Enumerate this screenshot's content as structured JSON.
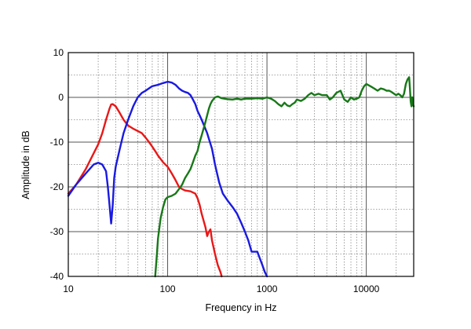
{
  "chart_data": {
    "type": "line",
    "xlabel": "Frequency in Hz",
    "ylabel": "Amplitude in dB",
    "x_scale": "log",
    "xlim": [
      10,
      30000
    ],
    "ylim": [
      -40,
      10
    ],
    "x_ticks": [
      {
        "value": 10,
        "label": "10"
      },
      {
        "value": 100,
        "label": "100"
      },
      {
        "value": 1000,
        "label": "1000"
      },
      {
        "value": 10000,
        "label": "10000"
      }
    ],
    "y_ticks": [
      {
        "value": 10,
        "label": "10"
      },
      {
        "value": 0,
        "label": "0"
      },
      {
        "value": -10,
        "label": "-10"
      },
      {
        "value": -20,
        "label": "-20"
      },
      {
        "value": -30,
        "label": "-30"
      },
      {
        "value": -40,
        "label": "-40"
      }
    ],
    "grid": true,
    "series": [
      {
        "color": "#e81818",
        "points": [
          [
            10,
            -21.5
          ],
          [
            12,
            -19.5
          ],
          [
            15,
            -16
          ],
          [
            18,
            -12.5
          ],
          [
            20,
            -10.5
          ],
          [
            22,
            -8
          ],
          [
            24,
            -5
          ],
          [
            26,
            -2.5
          ],
          [
            27,
            -1.6
          ],
          [
            28,
            -1.5
          ],
          [
            30,
            -2
          ],
          [
            33,
            -3.5
          ],
          [
            36,
            -5
          ],
          [
            40,
            -6.3
          ],
          [
            45,
            -7
          ],
          [
            50,
            -7.5
          ],
          [
            55,
            -8
          ],
          [
            60,
            -9
          ],
          [
            65,
            -10
          ],
          [
            70,
            -11
          ],
          [
            75,
            -12
          ],
          [
            80,
            -13
          ],
          [
            90,
            -14.5
          ],
          [
            100,
            -15.5
          ],
          [
            110,
            -17
          ],
          [
            120,
            -18.5
          ],
          [
            130,
            -20
          ],
          [
            140,
            -20.5
          ],
          [
            150,
            -20.8
          ],
          [
            170,
            -21
          ],
          [
            190,
            -21.5
          ],
          [
            200,
            -22.5
          ],
          [
            210,
            -24
          ],
          [
            220,
            -26
          ],
          [
            230,
            -27.5
          ],
          [
            240,
            -29
          ],
          [
            250,
            -31
          ],
          [
            260,
            -30
          ],
          [
            270,
            -29.5
          ],
          [
            280,
            -32
          ],
          [
            300,
            -35
          ],
          [
            320,
            -37.5
          ],
          [
            340,
            -39
          ],
          [
            350,
            -40
          ]
        ]
      },
      {
        "color": "#1a1ae0",
        "points": [
          [
            10,
            -22
          ],
          [
            12,
            -19.5
          ],
          [
            15,
            -17
          ],
          [
            18,
            -15
          ],
          [
            20,
            -14.6
          ],
          [
            22,
            -15
          ],
          [
            24,
            -16.5
          ],
          [
            25,
            -20
          ],
          [
            26,
            -24
          ],
          [
            27,
            -28.2
          ],
          [
            28,
            -24
          ],
          [
            29,
            -18
          ],
          [
            30,
            -15.5
          ],
          [
            33,
            -11.5
          ],
          [
            36,
            -8
          ],
          [
            40,
            -5
          ],
          [
            45,
            -2
          ],
          [
            50,
            0
          ],
          [
            55,
            1
          ],
          [
            60,
            1.5
          ],
          [
            70,
            2.5
          ],
          [
            80,
            2.8
          ],
          [
            90,
            3.2
          ],
          [
            100,
            3.5
          ],
          [
            110,
            3.3
          ],
          [
            120,
            2.8
          ],
          [
            130,
            2
          ],
          [
            140,
            1.5
          ],
          [
            150,
            1.2
          ],
          [
            160,
            1
          ],
          [
            170,
            0.5
          ],
          [
            180,
            -0.5
          ],
          [
            190,
            -1.5
          ],
          [
            200,
            -3
          ],
          [
            210,
            -4
          ],
          [
            220,
            -5
          ],
          [
            250,
            -8
          ],
          [
            280,
            -11.5
          ],
          [
            300,
            -15
          ],
          [
            330,
            -19
          ],
          [
            360,
            -21.5
          ],
          [
            400,
            -23
          ],
          [
            450,
            -24.5
          ],
          [
            500,
            -26
          ],
          [
            550,
            -28
          ],
          [
            600,
            -30
          ],
          [
            650,
            -32
          ],
          [
            700,
            -34.5
          ],
          [
            800,
            -34.5
          ],
          [
            900,
            -37.5
          ],
          [
            950,
            -39
          ],
          [
            1000,
            -40
          ]
        ]
      },
      {
        "color": "#187818",
        "points": [
          [
            75,
            -40
          ],
          [
            78,
            -35
          ],
          [
            80,
            -31.5
          ],
          [
            85,
            -27
          ],
          [
            90,
            -24.5
          ],
          [
            95,
            -22.8
          ],
          [
            100,
            -22.3
          ],
          [
            110,
            -22
          ],
          [
            120,
            -21.5
          ],
          [
            130,
            -20.5
          ],
          [
            140,
            -19.5
          ],
          [
            150,
            -18
          ],
          [
            160,
            -17
          ],
          [
            170,
            -16
          ],
          [
            180,
            -14.5
          ],
          [
            190,
            -13
          ],
          [
            200,
            -12
          ],
          [
            210,
            -10
          ],
          [
            220,
            -8.5
          ],
          [
            230,
            -7
          ],
          [
            240,
            -5.5
          ],
          [
            250,
            -4
          ],
          [
            260,
            -2.5
          ],
          [
            270,
            -1.5
          ],
          [
            280,
            -0.8
          ],
          [
            300,
            0
          ],
          [
            320,
            0.2
          ],
          [
            350,
            -0.2
          ],
          [
            400,
            -0.4
          ],
          [
            450,
            -0.5
          ],
          [
            500,
            -0.3
          ],
          [
            550,
            -0.5
          ],
          [
            600,
            -0.3
          ],
          [
            700,
            -0.3
          ],
          [
            800,
            -0.2
          ],
          [
            900,
            -0.3
          ],
          [
            1000,
            0
          ],
          [
            1100,
            -0.3
          ],
          [
            1200,
            -0.8
          ],
          [
            1300,
            -1.5
          ],
          [
            1400,
            -2
          ],
          [
            1500,
            -1.2
          ],
          [
            1600,
            -1.8
          ],
          [
            1700,
            -2
          ],
          [
            1800,
            -1.5
          ],
          [
            1900,
            -1.2
          ],
          [
            2000,
            -0.5
          ],
          [
            2200,
            -0.8
          ],
          [
            2400,
            -0.3
          ],
          [
            2600,
            0.5
          ],
          [
            2800,
            1
          ],
          [
            3000,
            0.5
          ],
          [
            3300,
            0.8
          ],
          [
            3600,
            0.5
          ],
          [
            4000,
            0.5
          ],
          [
            4300,
            -0.5
          ],
          [
            4600,
            0
          ],
          [
            5000,
            1
          ],
          [
            5500,
            1.5
          ],
          [
            6000,
            -0.5
          ],
          [
            6500,
            -1
          ],
          [
            7000,
            0
          ],
          [
            7500,
            -0.5
          ],
          [
            8000,
            -0.3
          ],
          [
            8500,
            0
          ],
          [
            9000,
            1.5
          ],
          [
            9500,
            2.5
          ],
          [
            10000,
            3
          ],
          [
            11000,
            2.5
          ],
          [
            12000,
            2
          ],
          [
            13000,
            1.5
          ],
          [
            14000,
            2
          ],
          [
            15000,
            1.8
          ],
          [
            16000,
            1.5
          ],
          [
            17000,
            1.5
          ],
          [
            18000,
            1.2
          ],
          [
            20000,
            0.5
          ],
          [
            21000,
            0.8
          ],
          [
            22000,
            0.5
          ],
          [
            23000,
            0
          ],
          [
            24000,
            0.8
          ],
          [
            25000,
            3
          ],
          [
            26000,
            4
          ],
          [
            27000,
            4.5
          ],
          [
            27500,
            2
          ],
          [
            28000,
            -1
          ],
          [
            28500,
            -2
          ],
          [
            29000,
            0
          ],
          [
            29500,
            -1.5
          ],
          [
            30000,
            -2
          ]
        ]
      }
    ]
  }
}
